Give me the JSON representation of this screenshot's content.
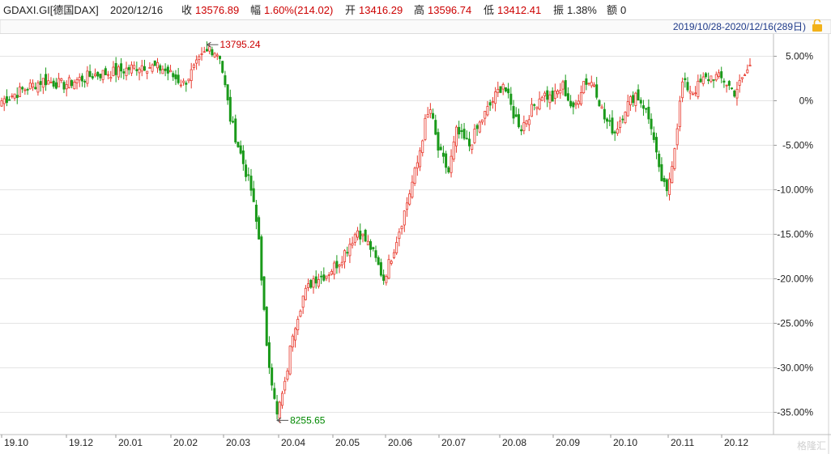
{
  "header": {
    "symbol": "GDAXI.GI[德国DAX]",
    "date": "2020/12/16",
    "close_label": "收",
    "close_value": "13576.89",
    "range_label": "幅",
    "range_value": "1.60%(214.02)",
    "open_label": "开",
    "open_value": "13416.29",
    "high_label": "高",
    "high_value": "13596.74",
    "low_label": "低",
    "low_value": "13412.41",
    "amp_label": "振",
    "amp_value": "1.38%",
    "vol_label": "额",
    "vol_value": "0",
    "period": "2019/10/28-2020/12/16(289日)"
  },
  "watermark": "格隆汇",
  "colors": {
    "up": "#e8382c",
    "down": "#1a9a1a",
    "text_up": "#cc0000",
    "text_down": "#008800",
    "grid": "#e4e4e4"
  },
  "chart_data": {
    "type": "candlestick",
    "title": "GDAXI.GI[德国DAX]",
    "x_tick_labels": [
      "19.10",
      "19.12",
      "20.01",
      "20.02",
      "20.03",
      "20.04",
      "20.05",
      "20.06",
      "20.07",
      "20.08",
      "20.09",
      "20.10",
      "20.11",
      "20.12"
    ],
    "y_tick_labels": [
      "5.00%",
      "0%",
      "-5.00%",
      "-10.00%",
      "-15.00%",
      "-20.00%",
      "-25.00%",
      "-30.00%",
      "-35.00%"
    ],
    "y_unit": "percent change vs 2019/10/28 close",
    "ylim": [
      -37.5,
      7.5
    ],
    "annotations": [
      {
        "label": "13795.24",
        "type": "max",
        "point_index": 79
      },
      {
        "label": "8255.65",
        "type": "min",
        "point_index": 106
      }
    ],
    "close_anchors": [
      [
        0,
        0.0
      ],
      [
        8,
        1.2
      ],
      [
        16,
        2.3
      ],
      [
        24,
        1.8
      ],
      [
        35,
        2.9
      ],
      [
        45,
        3.3
      ],
      [
        54,
        4.0
      ],
      [
        62,
        3.6
      ],
      [
        70,
        1.9
      ],
      [
        76,
        4.4
      ],
      [
        80,
        6.0
      ],
      [
        84,
        5.1
      ],
      [
        88,
        -2.0
      ],
      [
        92,
        -6.0
      ],
      [
        96,
        -10.0
      ],
      [
        99,
        -15.5
      ],
      [
        102,
        -28.0
      ],
      [
        105,
        -33.0
      ],
      [
        106,
        -35.2
      ],
      [
        109,
        -32.0
      ],
      [
        112,
        -26.0
      ],
      [
        116,
        -22.0
      ],
      [
        120,
        -20.0
      ],
      [
        125,
        -19.5
      ],
      [
        130,
        -18.0
      ],
      [
        137,
        -14.5
      ],
      [
        142,
        -16.5
      ],
      [
        147,
        -20.0
      ],
      [
        150,
        -17.5
      ],
      [
        155,
        -12.5
      ],
      [
        160,
        -7.0
      ],
      [
        163,
        -2.5
      ],
      [
        165,
        -1.0
      ],
      [
        168,
        -5.5
      ],
      [
        172,
        -8.0
      ],
      [
        175,
        -3.5
      ],
      [
        180,
        -5.0
      ],
      [
        185,
        -2.0
      ],
      [
        190,
        0.5
      ],
      [
        193,
        2.0
      ],
      [
        197,
        -1.5
      ],
      [
        200,
        -3.0
      ],
      [
        204,
        -1.0
      ],
      [
        208,
        0.8
      ],
      [
        212,
        0.2
      ],
      [
        216,
        1.7
      ],
      [
        220,
        -1.2
      ],
      [
        224,
        2.2
      ],
      [
        228,
        2.0
      ],
      [
        232,
        -2.0
      ],
      [
        236,
        -3.5
      ],
      [
        240,
        -0.8
      ],
      [
        244,
        0.8
      ],
      [
        247,
        -0.5
      ],
      [
        250,
        -2.8
      ],
      [
        253,
        -8.0
      ],
      [
        256,
        -10.5
      ],
      [
        259,
        -5.0
      ],
      [
        262,
        2.0
      ],
      [
        266,
        1.0
      ],
      [
        270,
        2.3
      ],
      [
        274,
        2.8
      ],
      [
        278,
        2.3
      ],
      [
        282,
        1.0
      ],
      [
        285,
        2.3
      ],
      [
        288,
        4.0
      ]
    ]
  }
}
